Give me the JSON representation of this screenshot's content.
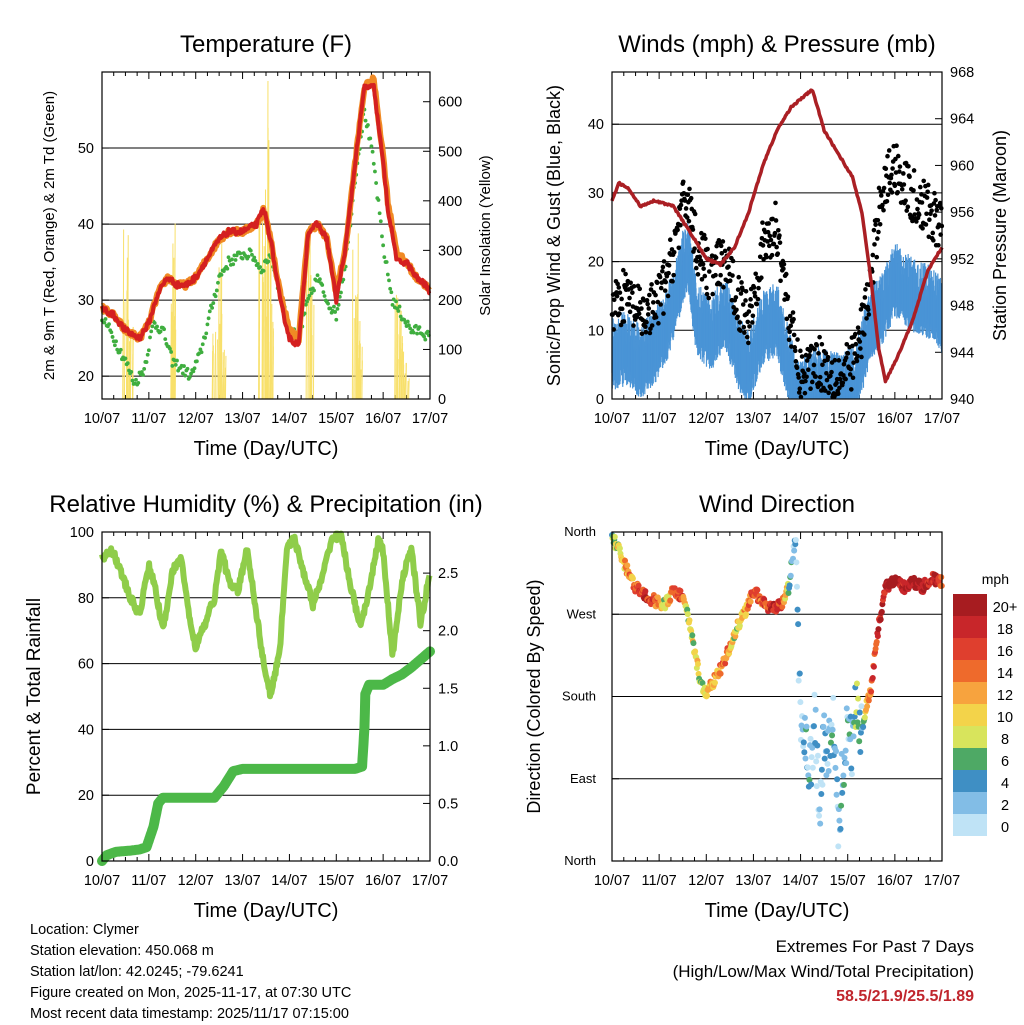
{
  "colors": {
    "temp_red": "#d42020",
    "temp_orange": "#f08a24",
    "dewpoint_green": "#3fae3f",
    "solar_yellow": "#f8e06a",
    "gust_black": "#000000",
    "sonic_blue": "#4a94d6",
    "pressure_maroon": "#aa1f24",
    "rh_green": "#8fcd4a",
    "rain_green": "#4cb848",
    "extremes_red": "#c0262d"
  },
  "chart_data": [
    {
      "type": "line",
      "title": "Temperature (F)",
      "xlabel": "Time (Day/UTC)",
      "ylabel": "2m & 9m T (Red, Orange) & 2m Td (Green)",
      "ylabel_right": "Solar Insolation (Yellow)",
      "x_ticks": [
        "10/07",
        "11/07",
        "12/07",
        "13/07",
        "14/07",
        "15/07",
        "16/07",
        "17/07"
      ],
      "xlim": [
        0,
        7
      ],
      "ylim": [
        17,
        60
      ],
      "y_ticks": [
        20,
        30,
        40,
        50
      ],
      "ylim_right": [
        0,
        660
      ],
      "y_ticks_right": [
        0,
        100,
        200,
        300,
        400,
        500,
        600
      ],
      "grid": true,
      "series": [
        {
          "name": "2m T",
          "axis": "left",
          "style": "line",
          "color_key": "temp_red",
          "x": [
            0,
            0.25,
            0.5,
            0.8,
            1.0,
            1.2,
            1.4,
            1.6,
            1.8,
            2.0,
            2.2,
            2.5,
            2.7,
            3.0,
            3.3,
            3.45,
            3.6,
            3.8,
            4.0,
            4.2,
            4.4,
            4.6,
            4.8,
            5.0,
            5.2,
            5.4,
            5.6,
            5.8,
            6.0,
            6.1,
            6.3,
            6.5,
            6.7,
            6.9,
            7.0
          ],
          "y": [
            29,
            28,
            26,
            25,
            27,
            31,
            33,
            32,
            32,
            33,
            35,
            38,
            39,
            39,
            40,
            42,
            38,
            30,
            25,
            24,
            39,
            40,
            38,
            30,
            37,
            48,
            58,
            58,
            48,
            42,
            35,
            35,
            33,
            32,
            31
          ]
        },
        {
          "name": "9m T",
          "axis": "left",
          "style": "line",
          "color_key": "temp_orange",
          "x": [
            0,
            0.25,
            0.5,
            0.8,
            1.0,
            1.2,
            1.4,
            1.6,
            1.8,
            2.0,
            2.2,
            2.5,
            2.7,
            3.0,
            3.3,
            3.45,
            3.6,
            3.8,
            4.0,
            4.2,
            4.4,
            4.6,
            4.8,
            5.0,
            5.2,
            5.4,
            5.6,
            5.8,
            6.0,
            6.1,
            6.3,
            6.5,
            6.7,
            6.9,
            7.0
          ],
          "y": [
            29,
            28,
            26,
            25,
            27,
            31,
            33,
            32,
            32,
            33,
            35,
            38,
            39,
            39,
            40,
            42,
            38,
            31,
            26,
            25,
            39,
            40,
            38,
            31,
            37,
            48,
            58,
            59,
            49,
            43,
            36,
            35,
            33,
            32,
            31
          ]
        },
        {
          "name": "2m Td",
          "axis": "left",
          "style": "dots",
          "color_key": "dewpoint_green",
          "x": [
            0,
            0.25,
            0.5,
            0.7,
            0.9,
            1.1,
            1.3,
            1.5,
            1.7,
            1.9,
            2.1,
            2.3,
            2.5,
            2.7,
            3.0,
            3.2,
            3.4,
            3.6,
            3.8,
            4.0,
            4.2,
            4.4,
            4.6,
            4.8,
            5.0,
            5.2,
            5.4,
            5.6,
            5.8,
            6.0,
            6.2,
            6.4,
            6.6,
            6.8,
            7.0
          ],
          "y": [
            28,
            25,
            22,
            19,
            21,
            27,
            26,
            22,
            21,
            20,
            23,
            28,
            33,
            35,
            36,
            36,
            34,
            36,
            31,
            26,
            25,
            30,
            33,
            30,
            28,
            35,
            46,
            55,
            48,
            37,
            30,
            28,
            26,
            26,
            25
          ]
        },
        {
          "name": "Solar Insolation",
          "axis": "right",
          "style": "spikes",
          "color_key": "solar_yellow",
          "x": [
            0.5,
            0.55,
            0.6,
            1.5,
            1.55,
            2.4,
            2.5,
            2.6,
            3.4,
            3.5,
            3.55,
            3.6,
            4.4,
            4.5,
            5.4,
            5.45,
            5.5,
            6.3,
            6.35,
            6.4,
            6.5
          ],
          "y": [
            380,
            250,
            150,
            380,
            200,
            200,
            340,
            120,
            550,
            650,
            400,
            200,
            400,
            260,
            350,
            200,
            120,
            250,
            200,
            140,
            80
          ]
        }
      ]
    },
    {
      "type": "line",
      "title": "Winds (mph) & Pressure (mb)",
      "xlabel": "Time (Day/UTC)",
      "ylabel": "Sonic/Prop Wind & Gust (Blue, Black)",
      "ylabel_right": "Station Pressure (Maroon)",
      "x_ticks": [
        "10/07",
        "11/07",
        "12/07",
        "13/07",
        "14/07",
        "15/07",
        "16/07",
        "17/07"
      ],
      "xlim": [
        0,
        7
      ],
      "ylim": [
        0,
        47.6
      ],
      "y_ticks": [
        0,
        10,
        20,
        30,
        40
      ],
      "ylim_right": [
        940,
        968
      ],
      "y_ticks_right": [
        940,
        944,
        948,
        952,
        956,
        960,
        964,
        968
      ],
      "grid": true,
      "series": [
        {
          "name": "Sonic/Prop Wind",
          "axis": "left",
          "style": "band",
          "color_key": "sonic_blue",
          "x": [
            0,
            0.3,
            0.6,
            0.9,
            1.2,
            1.4,
            1.6,
            1.8,
            2.1,
            2.4,
            2.7,
            2.9,
            3.2,
            3.5,
            3.8,
            4.0,
            4.3,
            4.6,
            4.9,
            5.2,
            5.5,
            5.7,
            6.0,
            6.3,
            6.6,
            6.9,
            7.0
          ],
          "y": [
            7,
            8,
            6,
            8,
            12,
            17,
            22,
            12,
            10,
            13,
            7,
            5,
            11,
            12,
            4,
            1,
            3,
            2,
            2,
            4,
            12,
            13,
            18,
            16,
            15,
            14,
            12
          ]
        },
        {
          "name": "Gust",
          "axis": "left",
          "style": "dots",
          "color_key": "gust_black",
          "x": [
            0,
            0.3,
            0.6,
            0.9,
            1.2,
            1.4,
            1.6,
            1.8,
            2.1,
            2.4,
            2.7,
            2.9,
            3.2,
            3.5,
            3.8,
            4.0,
            4.3,
            4.6,
            4.9,
            5.2,
            5.5,
            5.7,
            6.0,
            6.3,
            6.6,
            6.9,
            7.0
          ],
          "y": [
            14,
            15,
            12,
            13,
            18,
            25,
            30,
            22,
            18,
            20,
            14,
            12,
            22,
            25,
            10,
            3,
            6,
            4,
            3,
            7,
            17,
            30,
            34,
            30,
            28,
            26,
            24
          ]
        },
        {
          "name": "Station Pressure",
          "axis": "right",
          "style": "line",
          "color_key": "pressure_maroon",
          "x": [
            0,
            0.15,
            0.35,
            0.6,
            0.9,
            1.3,
            1.7,
            2.0,
            2.3,
            2.6,
            2.9,
            3.2,
            3.5,
            3.8,
            4.1,
            4.25,
            4.5,
            4.8,
            5.1,
            5.3,
            5.5,
            5.65,
            5.8,
            6.1,
            6.4,
            6.7,
            7.0
          ],
          "y": [
            957,
            958.5,
            958,
            956.5,
            957,
            956.5,
            954,
            952,
            951.5,
            953,
            956,
            960,
            963,
            965,
            966,
            966.5,
            963,
            961,
            959,
            956,
            950,
            944.5,
            941.5,
            944,
            947,
            951,
            953
          ]
        }
      ]
    },
    {
      "type": "line",
      "title": "Relative Humidity (%) & Precipitation (in)",
      "xlabel": "Time (Day/UTC)",
      "ylabel": "Percent & Total Rainfall",
      "x_ticks": [
        "10/07",
        "11/07",
        "12/07",
        "13/07",
        "14/07",
        "15/07",
        "16/07",
        "17/07"
      ],
      "xlim": [
        0,
        7
      ],
      "ylim": [
        0,
        100
      ],
      "y_ticks": [
        0,
        20,
        40,
        60,
        80,
        100
      ],
      "ylim_right": [
        0,
        2.857
      ],
      "y_ticks_right": [
        "0.0",
        "0.5",
        "1.0",
        "1.5",
        "2.0",
        "2.5"
      ],
      "grid": true,
      "series": [
        {
          "name": "Relative Humidity",
          "axis": "left",
          "style": "line",
          "color_key": "rh_green",
          "x": [
            0,
            0.2,
            0.4,
            0.6,
            0.8,
            1.0,
            1.15,
            1.3,
            1.5,
            1.7,
            1.85,
            2.0,
            2.2,
            2.4,
            2.55,
            2.7,
            2.9,
            3.1,
            3.3,
            3.45,
            3.6,
            3.8,
            3.95,
            4.1,
            4.3,
            4.5,
            4.7,
            4.9,
            5.1,
            5.3,
            5.5,
            5.65,
            5.8,
            5.9,
            6.0,
            6.2,
            6.4,
            6.6,
            6.8,
            7.0
          ],
          "y": [
            92,
            95,
            88,
            80,
            75,
            90,
            82,
            70,
            88,
            92,
            75,
            65,
            72,
            80,
            95,
            85,
            82,
            95,
            75,
            60,
            50,
            65,
            96,
            98,
            88,
            78,
            86,
            98,
            99,
            84,
            72,
            78,
            90,
            98,
            94,
            62,
            85,
            95,
            72,
            88
          ]
        },
        {
          "name": "Total Precipitation",
          "axis": "right",
          "style": "thick-line",
          "color_key": "rain_green",
          "x": [
            0,
            0.1,
            0.3,
            0.6,
            0.8,
            0.95,
            1.1,
            1.2,
            1.3,
            1.7,
            2.0,
            2.4,
            2.6,
            2.8,
            3.0,
            3.5,
            4.0,
            4.5,
            5.0,
            5.4,
            5.55,
            5.6,
            5.62,
            5.7,
            6.0,
            6.2,
            6.4,
            6.6,
            6.8,
            7.0
          ],
          "y": [
            0,
            0.05,
            0.08,
            0.09,
            0.1,
            0.12,
            0.3,
            0.5,
            0.55,
            0.55,
            0.55,
            0.55,
            0.65,
            0.78,
            0.8,
            0.8,
            0.8,
            0.8,
            0.8,
            0.8,
            0.82,
            1.15,
            1.45,
            1.53,
            1.53,
            1.58,
            1.62,
            1.68,
            1.75,
            1.82
          ]
        }
      ]
    },
    {
      "type": "scatter",
      "title": "Wind Direction",
      "xlabel": "Time (Day/UTC)",
      "ylabel": "Direction (Colored By Speed)",
      "x_ticks": [
        "10/07",
        "11/07",
        "12/07",
        "13/07",
        "14/07",
        "15/07",
        "16/07",
        "17/07"
      ],
      "xlim": [
        0,
        7
      ],
      "ylim": [
        0,
        360
      ],
      "y_tick_labels": [
        "North",
        "East",
        "South",
        "West",
        "North"
      ],
      "y_tick_values": [
        0,
        90,
        180,
        270,
        360
      ],
      "grid": true,
      "colorbar": {
        "unit": "mph",
        "labels": [
          "20+",
          "18",
          "16",
          "14",
          "12",
          "10",
          "8",
          "6",
          "4",
          "2",
          "0"
        ],
        "colors": [
          "#a71c20",
          "#c8262a",
          "#df3f2e",
          "#ee6a2c",
          "#f7a33e",
          "#f3d34a",
          "#d8e45c",
          "#4ea965",
          "#3f8fc4",
          "#82bde6",
          "#bfe3f6"
        ]
      },
      "series": [
        {
          "name": "Direction",
          "x": [
            0,
            0.15,
            0.3,
            0.5,
            0.7,
            0.9,
            1.1,
            1.3,
            1.5,
            1.6,
            1.75,
            1.9,
            2.0,
            2.2,
            2.4,
            2.6,
            2.8,
            3.0,
            3.2,
            3.4,
            3.6,
            3.75,
            3.85,
            3.9,
            4.0,
            4.1,
            4.2,
            4.3,
            4.4,
            4.5,
            4.6,
            4.7,
            4.8,
            4.9,
            5.0,
            5.1,
            5.2,
            5.3,
            5.4,
            5.5,
            5.6,
            5.7,
            5.8,
            6.0,
            6.2,
            6.4,
            6.6,
            6.8,
            7.0
          ],
          "y": [
            355,
            340,
            320,
            300,
            290,
            285,
            280,
            295,
            290,
            270,
            230,
            190,
            185,
            200,
            220,
            250,
            270,
            295,
            285,
            275,
            280,
            300,
            340,
            350,
            150,
            130,
            100,
            150,
            60,
            130,
            120,
            150,
            30,
            110,
            150,
            120,
            180,
            140,
            170,
            190,
            240,
            270,
            300,
            305,
            300,
            305,
            300,
            310,
            305
          ],
          "speed": [
            6,
            10,
            12,
            14,
            18,
            16,
            8,
            14,
            16,
            6,
            10,
            6,
            10,
            12,
            14,
            8,
            10,
            16,
            14,
            18,
            16,
            6,
            2,
            2,
            1,
            2,
            3,
            1,
            1,
            4,
            3,
            2,
            1,
            4,
            3,
            2,
            6,
            3,
            12,
            14,
            16,
            18,
            20,
            22,
            18,
            22,
            20,
            18,
            16
          ]
        }
      ]
    }
  ],
  "info": {
    "location": "Location: Clymer",
    "elevation": "Station elevation: 450.068 m",
    "latlon": "Station lat/lon: 42.0245; -79.6241",
    "created": "Figure created on Mon, 2025-11-17, at 07:30 UTC",
    "timestamp": "Most recent data timestamp: 2025/11/17 07:15:00"
  },
  "extremes": {
    "title": "Extremes For Past 7 Days",
    "subtitle": "(High/Low/Max Wind/Total Precipitation)",
    "values": "58.5/21.9/25.5/1.89"
  }
}
